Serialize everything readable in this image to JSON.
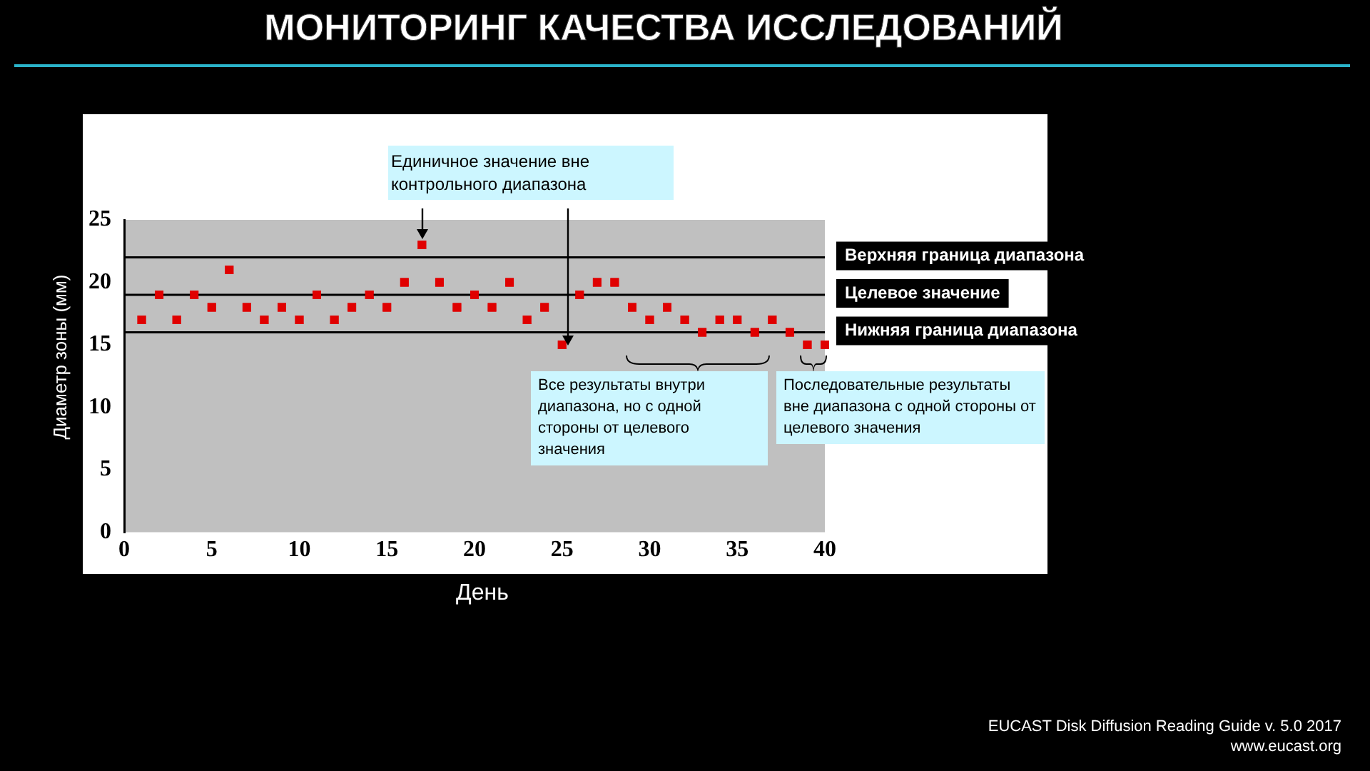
{
  "chart_data": {
    "type": "scatter",
    "title": "МОНИТОРИНГ КАЧЕСТВА ИССЛЕДОВАНИЙ",
    "xlabel": "День",
    "ylabel": "Диаметр зоны (мм)",
    "x": [
      1,
      2,
      3,
      4,
      5,
      6,
      7,
      8,
      9,
      10,
      11,
      12,
      13,
      14,
      15,
      16,
      17,
      18,
      19,
      20,
      21,
      22,
      23,
      24,
      25,
      26,
      27,
      28,
      29,
      30,
      31,
      32,
      33,
      34,
      35,
      36,
      37,
      38,
      39,
      40
    ],
    "series": [
      {
        "color": "#e00000",
        "values": [
          17,
          19,
          17,
          19,
          18,
          21,
          18,
          17,
          18,
          17,
          19,
          17,
          18,
          19,
          18,
          20,
          23,
          20,
          18,
          19,
          18,
          20,
          17,
          18,
          15,
          19,
          20,
          20,
          18,
          17,
          18,
          17,
          16,
          17,
          17,
          16,
          17,
          16,
          15,
          15
        ]
      }
    ],
    "xlim": [
      0,
      40
    ],
    "xticks": [
      0,
      5,
      10,
      15,
      20,
      25,
      30,
      35,
      40
    ],
    "ylim": [
      0,
      25
    ],
    "yticks": [
      0,
      5,
      10,
      15,
      20,
      25
    ],
    "ref_lines": [
      {
        "axis": "y",
        "value": 22,
        "label": "Верхняя граница диапазона",
        "color": "#000000"
      },
      {
        "axis": "y",
        "value": 19,
        "label": "Целевое значение",
        "color": "#000000"
      },
      {
        "axis": "y",
        "value": 16,
        "label": "Нижняя граница диапазона",
        "color": "#000000"
      }
    ],
    "annotations": [
      {
        "text": "Единичное значение вне контрольного диапазона",
        "x": 17,
        "y": 23
      },
      "Все результаты внутри диапазона, но с одной стороны от целевого значения",
      "Последовательные результаты вне диапазона с одной стороны от целевого значения",
      "EUCAST Disk Diffusion Reading Guide v. 5.0 2017",
      "www.eucast.org"
    ],
    "grid": false,
    "legend": false,
    "marker": "square"
  }
}
